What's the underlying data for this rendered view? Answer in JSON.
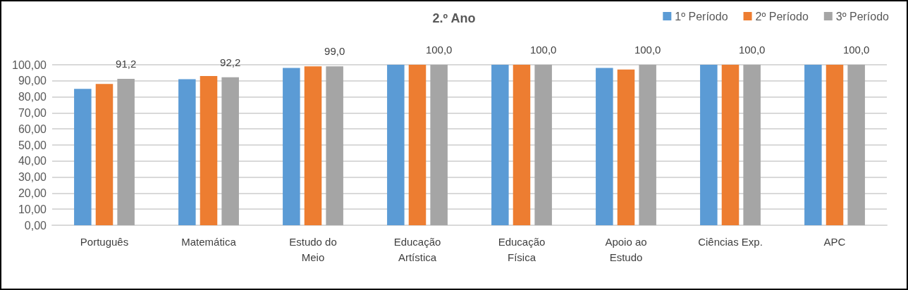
{
  "chart_data": {
    "type": "bar",
    "title": "2.º Ano",
    "categories": [
      "Português",
      "Matemática",
      "Estudo do\nMeio",
      "Educação\nArtística",
      "Educação\nFísica",
      "Apoio ao\nEstudo",
      "Ciências Exp.",
      "APC"
    ],
    "series": [
      {
        "name": "1º Período",
        "color": "#5b9bd5",
        "values": [
          85,
          91,
          98,
          100,
          100,
          98,
          100,
          100
        ]
      },
      {
        "name": "2º Período",
        "color": "#ed7d31",
        "values": [
          88,
          93,
          99,
          100,
          100,
          97,
          100,
          100
        ]
      },
      {
        "name": "3º Período",
        "color": "#a5a5a5",
        "values": [
          91.2,
          92.2,
          99.0,
          100,
          100,
          100,
          100,
          100
        ],
        "value_labels": [
          "91,2",
          "92,2",
          "99,0",
          "100,0",
          "100,0",
          "100,0",
          "100,0",
          "100,0"
        ]
      }
    ],
    "ylim": [
      0,
      100
    ],
    "yticks": [
      {
        "value": 0,
        "label": "0,00"
      },
      {
        "value": 10,
        "label": "10,00"
      },
      {
        "value": 20,
        "label": "20,00"
      },
      {
        "value": 30,
        "label": "30,00"
      },
      {
        "value": 40,
        "label": "40,00"
      },
      {
        "value": 50,
        "label": "50,00"
      },
      {
        "value": 60,
        "label": "60,00"
      },
      {
        "value": 70,
        "label": "70,00"
      },
      {
        "value": 80,
        "label": "80,00"
      },
      {
        "value": 90,
        "label": "90,00"
      },
      {
        "value": 100,
        "label": "100,00"
      }
    ],
    "grid": "y",
    "legend": "top right"
  }
}
